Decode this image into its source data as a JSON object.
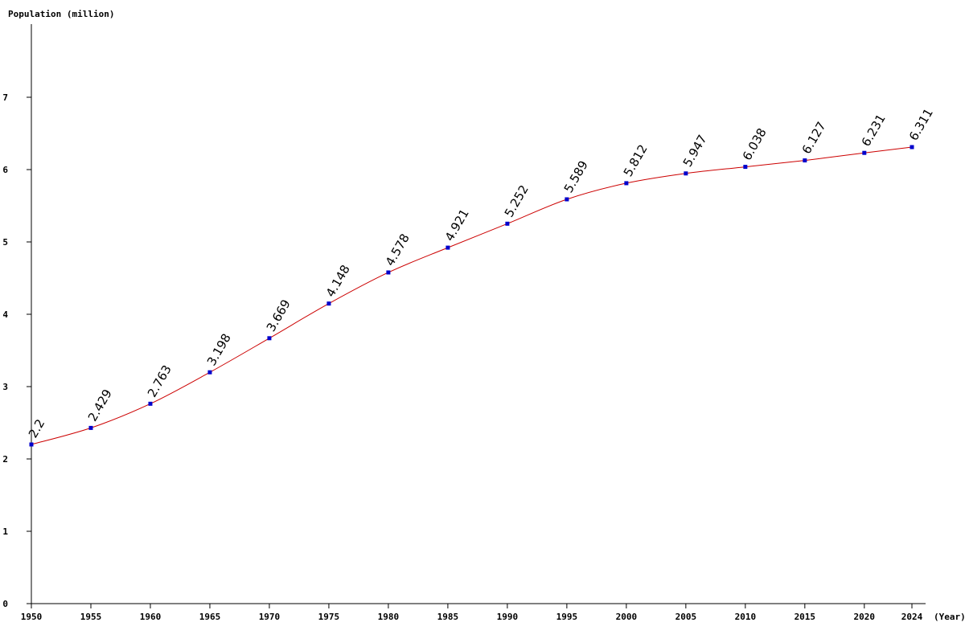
{
  "chart_data": {
    "type": "line",
    "title": "",
    "ylabel": "Population (million)",
    "xlabel": "(Year)",
    "x": [
      1950,
      1955,
      1960,
      1965,
      1970,
      1975,
      1980,
      1985,
      1990,
      1995,
      2000,
      2005,
      2010,
      2015,
      2020,
      2024
    ],
    "series": [
      {
        "values": [
          2.2,
          2.429,
          2.763,
          3.198,
          3.669,
          4.148,
          4.578,
          4.921,
          5.252,
          5.589,
          5.812,
          5.947,
          6.038,
          6.127,
          6.231,
          6.311
        ],
        "labels": [
          "2.2",
          "2.429",
          "2.763",
          "3.198",
          "3.669",
          "4.148",
          "4.578",
          "4.921",
          "5.252",
          "5.589",
          "5.812",
          "5.947",
          "6.038",
          "6.127",
          "6.231",
          "6.311"
        ]
      }
    ],
    "ylim": [
      0,
      8
    ],
    "yticks": [
      0,
      1,
      2,
      3,
      4,
      5,
      6,
      7
    ],
    "xticks": [
      1950,
      1955,
      1960,
      1965,
      1970,
      1975,
      1980,
      1985,
      1990,
      1995,
      2000,
      2005,
      2010,
      2015,
      2020,
      2024
    ],
    "grid": false,
    "legend": "none",
    "colors": {
      "line": "#cc0000",
      "points": "#0000cc",
      "axis": "#000000"
    }
  }
}
